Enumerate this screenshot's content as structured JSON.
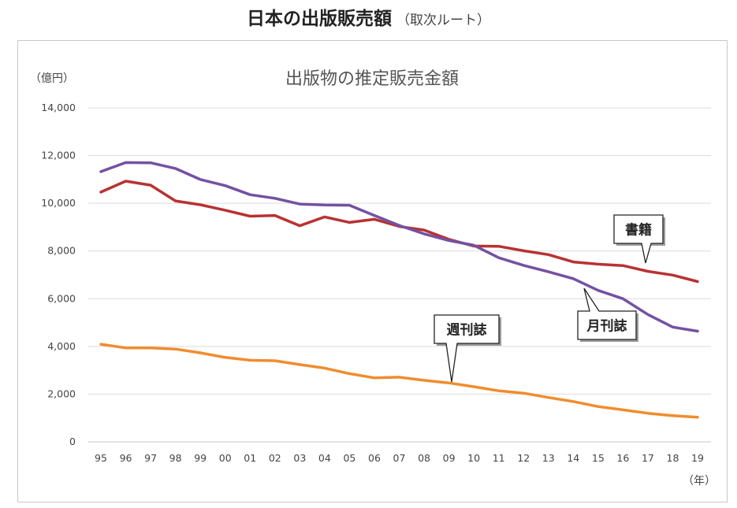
{
  "page_heading": {
    "main": "日本の出版販売額",
    "sub": "（取次ルート）"
  },
  "chart_data": {
    "type": "line",
    "title": "出版物の推定販売金額",
    "ylabel": "（億円）",
    "xlabel": "（年）",
    "ylim": [
      0,
      14000
    ],
    "yticks": [
      "0",
      "2,000",
      "4,000",
      "6,000",
      "8,000",
      "10,000",
      "12,000",
      "14,000"
    ],
    "ytick_values": [
      0,
      2000,
      4000,
      6000,
      8000,
      10000,
      12000,
      14000
    ],
    "grid": true,
    "categories": [
      "95",
      "96",
      "97",
      "98",
      "99",
      "00",
      "01",
      "02",
      "03",
      "04",
      "05",
      "06",
      "07",
      "08",
      "09",
      "10",
      "11",
      "12",
      "13",
      "14",
      "15",
      "16",
      "17",
      "18",
      "19"
    ],
    "series": [
      {
        "name": "書籍",
        "color": "#b83232",
        "values": [
          10470,
          10930,
          10760,
          10100,
          9940,
          9710,
          9460,
          9490,
          9060,
          9430,
          9200,
          9330,
          9030,
          8880,
          8490,
          8210,
          8200,
          8010,
          7850,
          7540,
          7450,
          7390,
          7150,
          6990,
          6720
        ]
      },
      {
        "name": "月刊誌",
        "color": "#7451a3",
        "values": [
          11330,
          11710,
          11700,
          11460,
          11000,
          10740,
          10360,
          10210,
          9970,
          9930,
          9920,
          9490,
          9070,
          8720,
          8440,
          8240,
          7720,
          7400,
          7130,
          6840,
          6350,
          6000,
          5340,
          4810,
          4640
        ]
      },
      {
        "name": "週刊誌",
        "color": "#f08c2e",
        "values": [
          4090,
          3940,
          3940,
          3890,
          3730,
          3540,
          3420,
          3400,
          3240,
          3090,
          2860,
          2680,
          2710,
          2580,
          2470,
          2310,
          2140,
          2040,
          1860,
          1690,
          1480,
          1340,
          1200,
          1100,
          1030
        ]
      }
    ]
  }
}
